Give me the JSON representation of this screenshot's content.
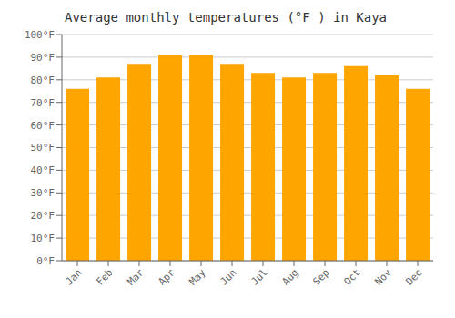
{
  "chart_data": {
    "type": "bar",
    "title": "Average monthly temperatures (°F ) in Kaya",
    "categories": [
      "Jan",
      "Feb",
      "Mar",
      "Apr",
      "May",
      "Jun",
      "Jul",
      "Aug",
      "Sep",
      "Oct",
      "Nov",
      "Dec"
    ],
    "values": [
      76,
      81,
      87,
      91,
      91,
      87,
      83,
      81,
      83,
      86,
      82,
      76
    ],
    "color": "#FFA500",
    "ylim": [
      0,
      100
    ],
    "yticks": [
      {
        "value": 0,
        "label": "0°F"
      },
      {
        "value": 10,
        "label": "10°F"
      },
      {
        "value": 20,
        "label": "20°F"
      },
      {
        "value": 30,
        "label": "30°F"
      },
      {
        "value": 40,
        "label": "40°F"
      },
      {
        "value": 50,
        "label": "50°F"
      },
      {
        "value": 60,
        "label": "60°F"
      },
      {
        "value": 70,
        "label": "70°F"
      },
      {
        "value": 80,
        "label": "80°F"
      },
      {
        "value": 90,
        "label": "90°F"
      },
      {
        "value": 100,
        "label": "100°F"
      }
    ],
    "grid": true
  }
}
